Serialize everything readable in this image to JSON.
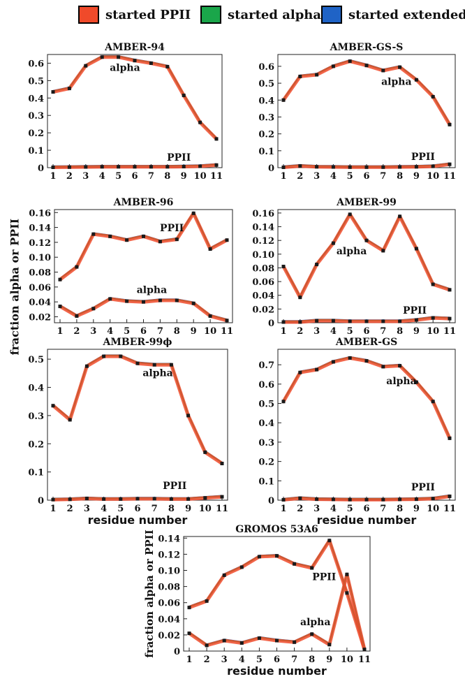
{
  "legend": [
    {
      "label": "started PPII",
      "color": "#f04a2a"
    },
    {
      "label": "started alpha",
      "color": "#1aa64a"
    },
    {
      "label": "started extended",
      "color": "#1f63c6"
    }
  ],
  "shared_ylabel": "fraction alpha or PPII",
  "chart_data": [
    {
      "type": "line",
      "title": "AMBER-94",
      "xlabel": "",
      "ylabel": "",
      "x": [
        1,
        2,
        3,
        4,
        5,
        6,
        7,
        8,
        9,
        10,
        11
      ],
      "ylim": [
        0,
        0.65
      ],
      "yticks": [
        0,
        0.1,
        0.2,
        0.3,
        0.4,
        0.5,
        0.6
      ],
      "ytick_labels": [
        "0",
        "0.1",
        "0.2",
        "0.3",
        "0.4",
        "0.5",
        "0.6"
      ],
      "series": [
        {
          "values": [
            0.435,
            0.455,
            0.585,
            0.635,
            0.635,
            0.615,
            0.6,
            0.58,
            0.415,
            0.26,
            0.165
          ]
        },
        {
          "values": [
            0.002,
            0.003,
            0.004,
            0.005,
            0.005,
            0.005,
            0.005,
            0.005,
            0.006,
            0.008,
            0.015
          ]
        }
      ],
      "annotations": [
        {
          "text": "alpha",
          "x": 5.4,
          "y": 0.555
        },
        {
          "text": "PPII",
          "x": 8.7,
          "y": 0.04
        }
      ]
    },
    {
      "type": "line",
      "title": "AMBER-GS-S",
      "xlabel": "",
      "ylabel": "",
      "x": [
        1,
        2,
        3,
        4,
        5,
        6,
        7,
        8,
        9,
        10,
        11
      ],
      "ylim": [
        0,
        0.67
      ],
      "yticks": [
        0,
        0.1,
        0.2,
        0.3,
        0.4,
        0.5,
        0.6
      ],
      "ytick_labels": [
        "0",
        "0.1",
        "0.2",
        "0.3",
        "0.4",
        "0.5",
        "0.6"
      ],
      "series": [
        {
          "values": [
            0.4,
            0.54,
            0.55,
            0.6,
            0.63,
            0.605,
            0.575,
            0.595,
            0.52,
            0.42,
            0.255
          ]
        },
        {
          "values": [
            0.002,
            0.01,
            0.005,
            0.004,
            0.003,
            0.003,
            0.003,
            0.004,
            0.005,
            0.008,
            0.02
          ]
        }
      ],
      "annotations": [
        {
          "text": "alpha",
          "x": 7.8,
          "y": 0.49
        },
        {
          "text": "PPII",
          "x": 9.4,
          "y": 0.045
        }
      ]
    },
    {
      "type": "line",
      "title": "AMBER-96",
      "xlabel": "",
      "ylabel": "",
      "x": [
        1,
        2,
        3,
        4,
        5,
        6,
        7,
        8,
        9,
        10,
        11
      ],
      "ylim": [
        0.012,
        0.164
      ],
      "yticks": [
        0.02,
        0.04,
        0.06,
        0.08,
        0.1,
        0.12,
        0.14,
        0.16
      ],
      "ytick_labels": [
        "0.02",
        "0.04",
        "0.06",
        "0.08",
        "0.10",
        "0.12",
        "0.14",
        "0.16"
      ],
      "series": [
        {
          "values": [
            0.07,
            0.087,
            0.131,
            0.128,
            0.123,
            0.128,
            0.121,
            0.124,
            0.159,
            0.111,
            0.123
          ]
        },
        {
          "values": [
            0.034,
            0.021,
            0.031,
            0.044,
            0.041,
            0.04,
            0.042,
            0.042,
            0.038,
            0.021,
            0.015
          ]
        }
      ],
      "annotations": [
        {
          "text": "PPII",
          "x": 7.7,
          "y": 0.135
        },
        {
          "text": "alpha",
          "x": 6.5,
          "y": 0.052
        }
      ]
    },
    {
      "type": "line",
      "title": "AMBER-99",
      "xlabel": "",
      "ylabel": "",
      "x": [
        1,
        2,
        3,
        4,
        5,
        6,
        7,
        8,
        9,
        10,
        11
      ],
      "ylim": [
        0,
        0.165
      ],
      "yticks": [
        0,
        0.02,
        0.04,
        0.06,
        0.08,
        0.1,
        0.12,
        0.14,
        0.16
      ],
      "ytick_labels": [
        "0",
        "0.02",
        "0.04",
        "0.06",
        "0.08",
        "0.10",
        "0.12",
        "0.14",
        "0.16"
      ],
      "series": [
        {
          "values": [
            0.082,
            0.037,
            0.085,
            0.116,
            0.158,
            0.12,
            0.105,
            0.155,
            0.108,
            0.056,
            0.048
          ]
        },
        {
          "values": [
            0.001,
            0.001,
            0.003,
            0.003,
            0.002,
            0.002,
            0.002,
            0.002,
            0.004,
            0.007,
            0.006
          ]
        }
      ],
      "annotations": [
        {
          "text": "alpha",
          "x": 5.1,
          "y": 0.1
        },
        {
          "text": "PPII",
          "x": 8.9,
          "y": 0.013
        }
      ]
    },
    {
      "type": "line",
      "title": "AMBER-99ϕ",
      "xlabel": "residue number",
      "ylabel": "",
      "x": [
        1,
        2,
        3,
        4,
        5,
        6,
        7,
        8,
        9,
        10,
        11
      ],
      "ylim": [
        0,
        0.535
      ],
      "yticks": [
        0,
        0.1,
        0.2,
        0.3,
        0.4,
        0.5
      ],
      "ytick_labels": [
        "0",
        "0.1",
        "0.2",
        "0.3",
        "0.4",
        "0.5"
      ],
      "series": [
        {
          "values": [
            0.335,
            0.285,
            0.475,
            0.51,
            0.51,
            0.485,
            0.48,
            0.48,
            0.3,
            0.17,
            0.13
          ]
        },
        {
          "values": [
            0.002,
            0.003,
            0.006,
            0.004,
            0.004,
            0.005,
            0.005,
            0.004,
            0.004,
            0.008,
            0.012
          ]
        }
      ],
      "annotations": [
        {
          "text": "alpha",
          "x": 7.2,
          "y": 0.44
        },
        {
          "text": "PPII",
          "x": 8.2,
          "y": 0.04
        }
      ]
    },
    {
      "type": "line",
      "title": "AMBER-GS",
      "xlabel": "residue number",
      "ylabel": "",
      "x": [
        1,
        2,
        3,
        4,
        5,
        6,
        7,
        8,
        9,
        10,
        11
      ],
      "ylim": [
        0,
        0.78
      ],
      "yticks": [
        0,
        0.1,
        0.2,
        0.3,
        0.4,
        0.5,
        0.6,
        0.7
      ],
      "ytick_labels": [
        "0",
        "0.1",
        "0.2",
        "0.3",
        "0.4",
        "0.5",
        "0.6",
        "0.7"
      ],
      "series": [
        {
          "values": [
            0.51,
            0.66,
            0.675,
            0.715,
            0.735,
            0.72,
            0.69,
            0.695,
            0.61,
            0.51,
            0.32
          ]
        },
        {
          "values": [
            0.002,
            0.01,
            0.005,
            0.004,
            0.003,
            0.003,
            0.003,
            0.004,
            0.005,
            0.008,
            0.02
          ]
        }
      ],
      "annotations": [
        {
          "text": "alpha",
          "x": 8.1,
          "y": 0.6
        },
        {
          "text": "PPII",
          "x": 9.4,
          "y": 0.05
        }
      ]
    },
    {
      "type": "line",
      "title": "GROMOS 53A6",
      "xlabel": "residue number",
      "ylabel": "fraction alpha or PPII",
      "x": [
        1,
        2,
        3,
        4,
        5,
        6,
        7,
        8,
        9,
        10,
        11
      ],
      "ylim": [
        0,
        0.142
      ],
      "yticks": [
        0,
        0.02,
        0.04,
        0.06,
        0.08,
        0.1,
        0.12,
        0.14
      ],
      "ytick_labels": [
        "0",
        "0.02",
        "0.04",
        "0.06",
        "0.08",
        "0.10",
        "0.12",
        "0.14"
      ],
      "series": [
        {
          "values": [
            0.054,
            0.062,
            0.094,
            0.104,
            0.117,
            0.118,
            0.108,
            0.103,
            0.137,
            0.072,
            0.002
          ]
        },
        {
          "values": [
            0.022,
            0.007,
            0.013,
            0.01,
            0.016,
            0.013,
            0.011,
            0.021,
            0.008,
            0.095,
            0.002
          ]
        }
      ],
      "annotations": [
        {
          "text": "PPII",
          "x": 8.7,
          "y": 0.088
        },
        {
          "text": "alpha",
          "x": 8.2,
          "y": 0.032
        }
      ]
    }
  ]
}
